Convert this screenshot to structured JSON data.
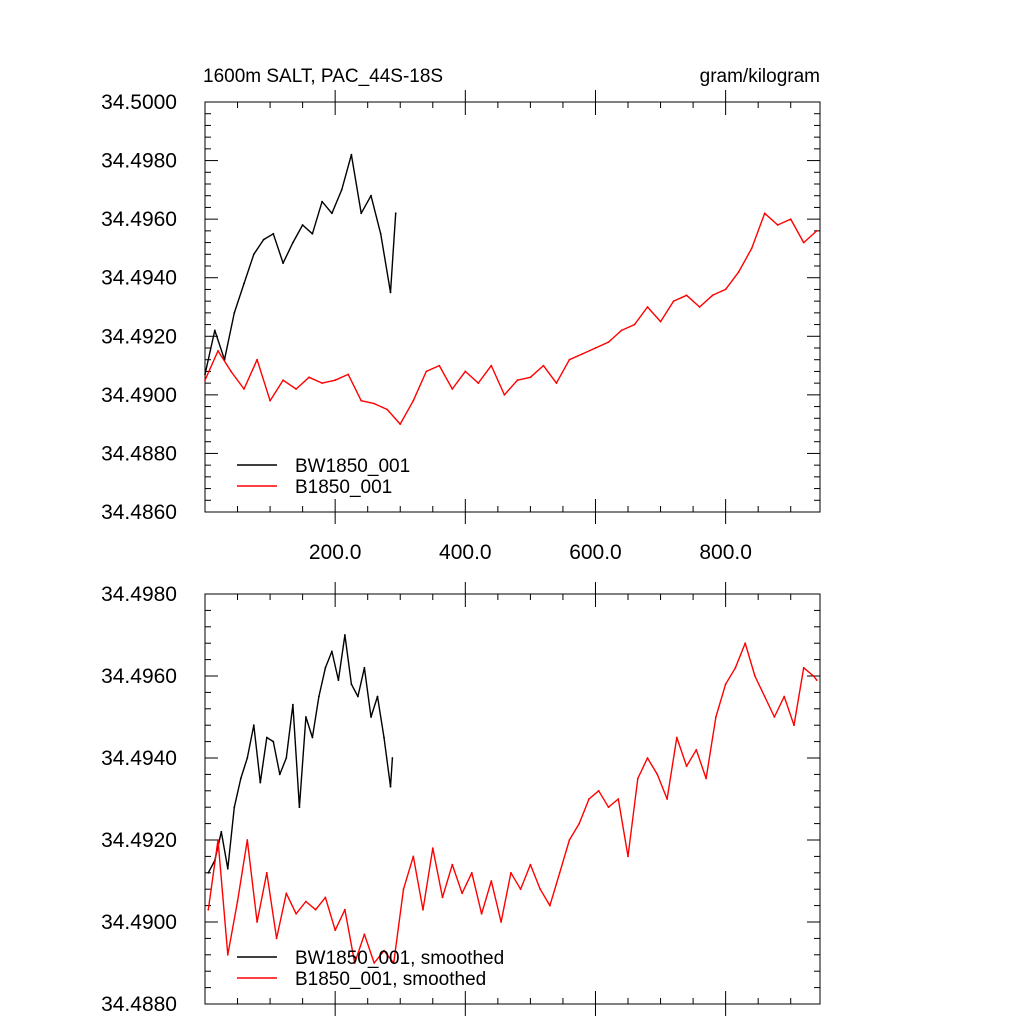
{
  "chart_data": [
    {
      "type": "line",
      "title": "1600m SALT, PAC_44S-18S",
      "units": "gram/kilogram",
      "xlabel": "",
      "ylabel": "",
      "xlim": [
        0,
        945
      ],
      "ylim": [
        34.486,
        34.5
      ],
      "xticks": [
        200,
        400,
        600,
        800
      ],
      "xtick_labels": [
        "200.0",
        "400.0",
        "600.0",
        "800.0"
      ],
      "yticks": [
        34.486,
        34.488,
        34.49,
        34.492,
        34.494,
        34.496,
        34.498,
        34.5
      ],
      "ytick_labels": [
        "34.4860",
        "34.4880",
        "34.4900",
        "34.4920",
        "34.4940",
        "34.4960",
        "34.4980",
        "34.5000"
      ],
      "grid": false,
      "legend_position": "bottom-left",
      "series": [
        {
          "name": "BW1850_001",
          "color": "#000000",
          "x": [
            0,
            15,
            30,
            45,
            60,
            75,
            90,
            105,
            120,
            135,
            150,
            165,
            180,
            195,
            210,
            225,
            240,
            255,
            270,
            285,
            293
          ],
          "values": [
            34.4907,
            34.4922,
            34.4912,
            34.4928,
            34.4938,
            34.4948,
            34.4953,
            34.4955,
            34.4945,
            34.4952,
            34.4958,
            34.4955,
            34.4966,
            34.4962,
            34.497,
            34.4982,
            34.4962,
            34.4968,
            34.4955,
            34.4935,
            34.4962
          ]
        },
        {
          "name": "B1850_001",
          "color": "#ff0000",
          "x": [
            0,
            20,
            40,
            60,
            80,
            100,
            120,
            140,
            160,
            180,
            200,
            220,
            240,
            260,
            280,
            300,
            320,
            340,
            360,
            380,
            400,
            420,
            440,
            460,
            480,
            500,
            520,
            540,
            560,
            580,
            600,
            620,
            640,
            660,
            680,
            700,
            720,
            740,
            760,
            780,
            800,
            820,
            840,
            860,
            880,
            900,
            920,
            940
          ],
          "values": [
            34.4905,
            34.4915,
            34.4908,
            34.4902,
            34.4912,
            34.4898,
            34.4905,
            34.4902,
            34.4906,
            34.4904,
            34.4905,
            34.4907,
            34.4898,
            34.4897,
            34.4895,
            34.489,
            34.4898,
            34.4908,
            34.491,
            34.4902,
            34.4908,
            34.4904,
            34.491,
            34.49,
            34.4905,
            34.4906,
            34.491,
            34.4904,
            34.4912,
            34.4914,
            34.4916,
            34.4918,
            34.4922,
            34.4924,
            34.493,
            34.4925,
            34.4932,
            34.4934,
            34.493,
            34.4934,
            34.4936,
            34.4942,
            34.495,
            34.4962,
            34.4958,
            34.496,
            34.4952,
            34.4956
          ]
        }
      ]
    },
    {
      "type": "line",
      "title": "",
      "xlabel": "",
      "ylabel": "",
      "xlim": [
        0,
        945
      ],
      "ylim": [
        34.488,
        34.498
      ],
      "xticks": [
        200,
        400,
        600,
        800
      ],
      "xtick_labels": [],
      "yticks": [
        34.488,
        34.49,
        34.492,
        34.494,
        34.496,
        34.498
      ],
      "ytick_labels": [
        "34.4880",
        "34.4900",
        "34.4920",
        "34.4940",
        "34.4960",
        "34.4980"
      ],
      "grid": false,
      "legend_position": "bottom-left",
      "series": [
        {
          "name": "BW1850_001, smoothed",
          "color": "#000000",
          "x": [
            5,
            15,
            25,
            35,
            45,
            55,
            65,
            75,
            85,
            95,
            105,
            115,
            125,
            135,
            145,
            155,
            165,
            175,
            185,
            195,
            205,
            215,
            225,
            235,
            245,
            255,
            265,
            275,
            285,
            288
          ],
          "values": [
            34.4912,
            34.4915,
            34.4922,
            34.4913,
            34.4928,
            34.4935,
            34.494,
            34.4948,
            34.4934,
            34.4945,
            34.4944,
            34.4936,
            34.494,
            34.4953,
            34.4928,
            34.495,
            34.4945,
            34.4955,
            34.4962,
            34.4966,
            34.4959,
            34.497,
            34.4958,
            34.4955,
            34.4962,
            34.495,
            34.4955,
            34.4945,
            34.4933,
            34.494
          ]
        },
        {
          "name": "B1850_001, smoothed",
          "color": "#ff0000",
          "x": [
            5,
            20,
            35,
            50,
            65,
            80,
            95,
            110,
            125,
            140,
            155,
            170,
            185,
            200,
            215,
            230,
            245,
            260,
            275,
            290,
            305,
            320,
            335,
            350,
            365,
            380,
            395,
            410,
            425,
            440,
            455,
            470,
            485,
            500,
            515,
            530,
            545,
            560,
            575,
            590,
            605,
            620,
            635,
            650,
            665,
            680,
            695,
            710,
            725,
            740,
            755,
            770,
            785,
            800,
            815,
            830,
            845,
            860,
            875,
            890,
            905,
            920,
            935,
            940
          ],
          "values": [
            34.4903,
            34.492,
            34.4892,
            34.4905,
            34.492,
            34.49,
            34.4912,
            34.4896,
            34.4907,
            34.4902,
            34.4905,
            34.4903,
            34.4906,
            34.4898,
            34.4903,
            34.489,
            34.4897,
            34.489,
            34.4893,
            34.489,
            34.4908,
            34.4916,
            34.4903,
            34.4918,
            34.4906,
            34.4914,
            34.4907,
            34.4912,
            34.4902,
            34.491,
            34.49,
            34.4912,
            34.4908,
            34.4914,
            34.4908,
            34.4904,
            34.4912,
            34.492,
            34.4924,
            34.493,
            34.4932,
            34.4928,
            34.493,
            34.4916,
            34.4935,
            34.494,
            34.4936,
            34.493,
            34.4945,
            34.4938,
            34.4942,
            34.4935,
            34.495,
            34.4958,
            34.4962,
            34.4968,
            34.496,
            34.4955,
            34.495,
            34.4955,
            34.4948,
            34.4962,
            34.496,
            34.4959
          ]
        }
      ]
    }
  ]
}
